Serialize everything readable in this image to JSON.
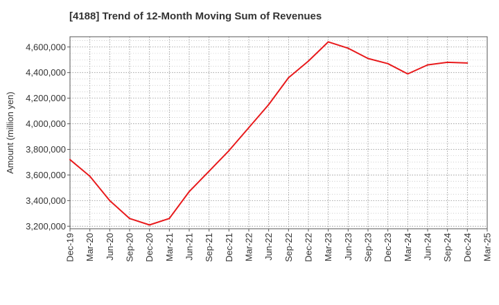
{
  "chart_data": {
    "type": "line",
    "title": "[4188]  Trend of 12-Month Moving Sum of Revenues",
    "xlabel": "",
    "ylabel": "Amount (million yen)",
    "ylim": [
      3180000,
      4680000
    ],
    "y_ticks": [
      3200000,
      3400000,
      3600000,
      3800000,
      4000000,
      4200000,
      4400000,
      4600000
    ],
    "y_tick_labels": [
      "3,200,000",
      "3,400,000",
      "3,600,000",
      "3,800,000",
      "4,000,000",
      "4,200,000",
      "4,400,000",
      "4,600,000"
    ],
    "x_tick_labels": [
      "Dec-19",
      "Mar-20",
      "Jun-20",
      "Sep-20",
      "Dec-20",
      "Mar-21",
      "Jun-21",
      "Sep-21",
      "Dec-21",
      "Mar-22",
      "Jun-22",
      "Sep-22",
      "Dec-22",
      "Mar-23",
      "Jun-23",
      "Sep-23",
      "Dec-23",
      "Mar-24",
      "Jun-24",
      "Sep-24",
      "Dec-24",
      "Mar-25"
    ],
    "grid": true,
    "legend": "none",
    "line_color": "#e8191b",
    "series": [
      {
        "x": [
          "Dec-19",
          "Mar-20",
          "Jun-20",
          "Sep-20",
          "Dec-20",
          "Mar-21",
          "Jun-21",
          "Sep-21",
          "Dec-21",
          "Mar-22",
          "Jun-22",
          "Sep-22",
          "Dec-22",
          "Mar-23",
          "Jun-23",
          "Sep-23",
          "Dec-23",
          "Mar-24",
          "Jun-24",
          "Sep-24",
          "Dec-24"
        ],
        "values": [
          3720000,
          3590000,
          3400000,
          3260000,
          3210000,
          3260000,
          3470000,
          3630000,
          3790000,
          3970000,
          4150000,
          4360000,
          4490000,
          4640000,
          4590000,
          4510000,
          4470000,
          4390000,
          4460000,
          4480000,
          4475000
        ]
      }
    ]
  }
}
